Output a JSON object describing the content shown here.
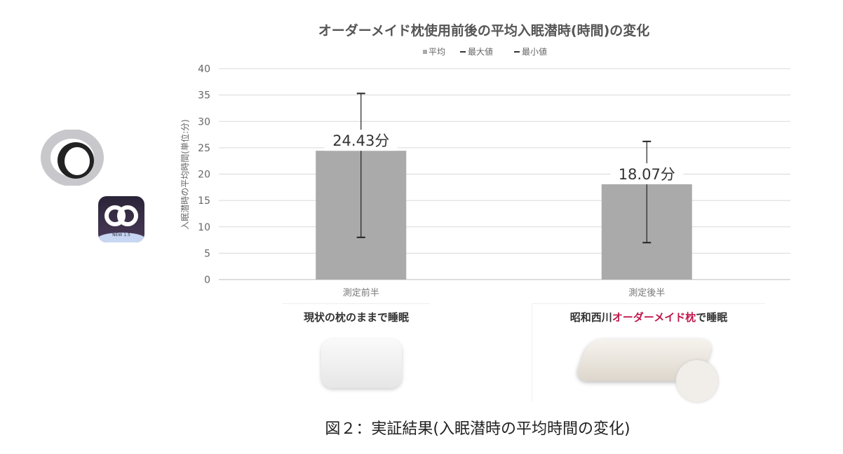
{
  "chart_data": {
    "type": "bar",
    "title": "オーダーメイド枕使用前後の平均入眠潜時(時間)の変化",
    "legend": [
      "平均",
      "最大値",
      "最小値"
    ],
    "legend_placement": "top",
    "ylabel": "入眠潜時の平均時間(単位:分)",
    "xlabel": "",
    "ylim": [
      0,
      40
    ],
    "yticks": [
      0,
      5,
      10,
      15,
      20,
      25,
      30,
      35,
      40
    ],
    "grid": true,
    "categories": [
      "測定前半",
      "測定後半"
    ],
    "series": [
      {
        "name": "平均",
        "values": [
          24.43,
          18.07
        ],
        "color": "#aaaaaa"
      },
      {
        "name": "最大値",
        "values": [
          35.3,
          26.2
        ]
      },
      {
        "name": "最小値",
        "values": [
          8.0,
          7.0
        ]
      }
    ],
    "data_labels": [
      "24.43分",
      "18.07分"
    ]
  },
  "panels": [
    {
      "title": "現状の枕のままで睡眠"
    },
    {
      "title_prefix": "昭和西川",
      "title_highlight": "オーダーメイド枕",
      "title_suffix": "で睡眠",
      "highlight_color": "#c0184a"
    }
  ],
  "app_icon": {
    "badge": "NEW 1.5"
  },
  "caption": "図２：実証結果(入眠潜時の平均時間の変化)"
}
